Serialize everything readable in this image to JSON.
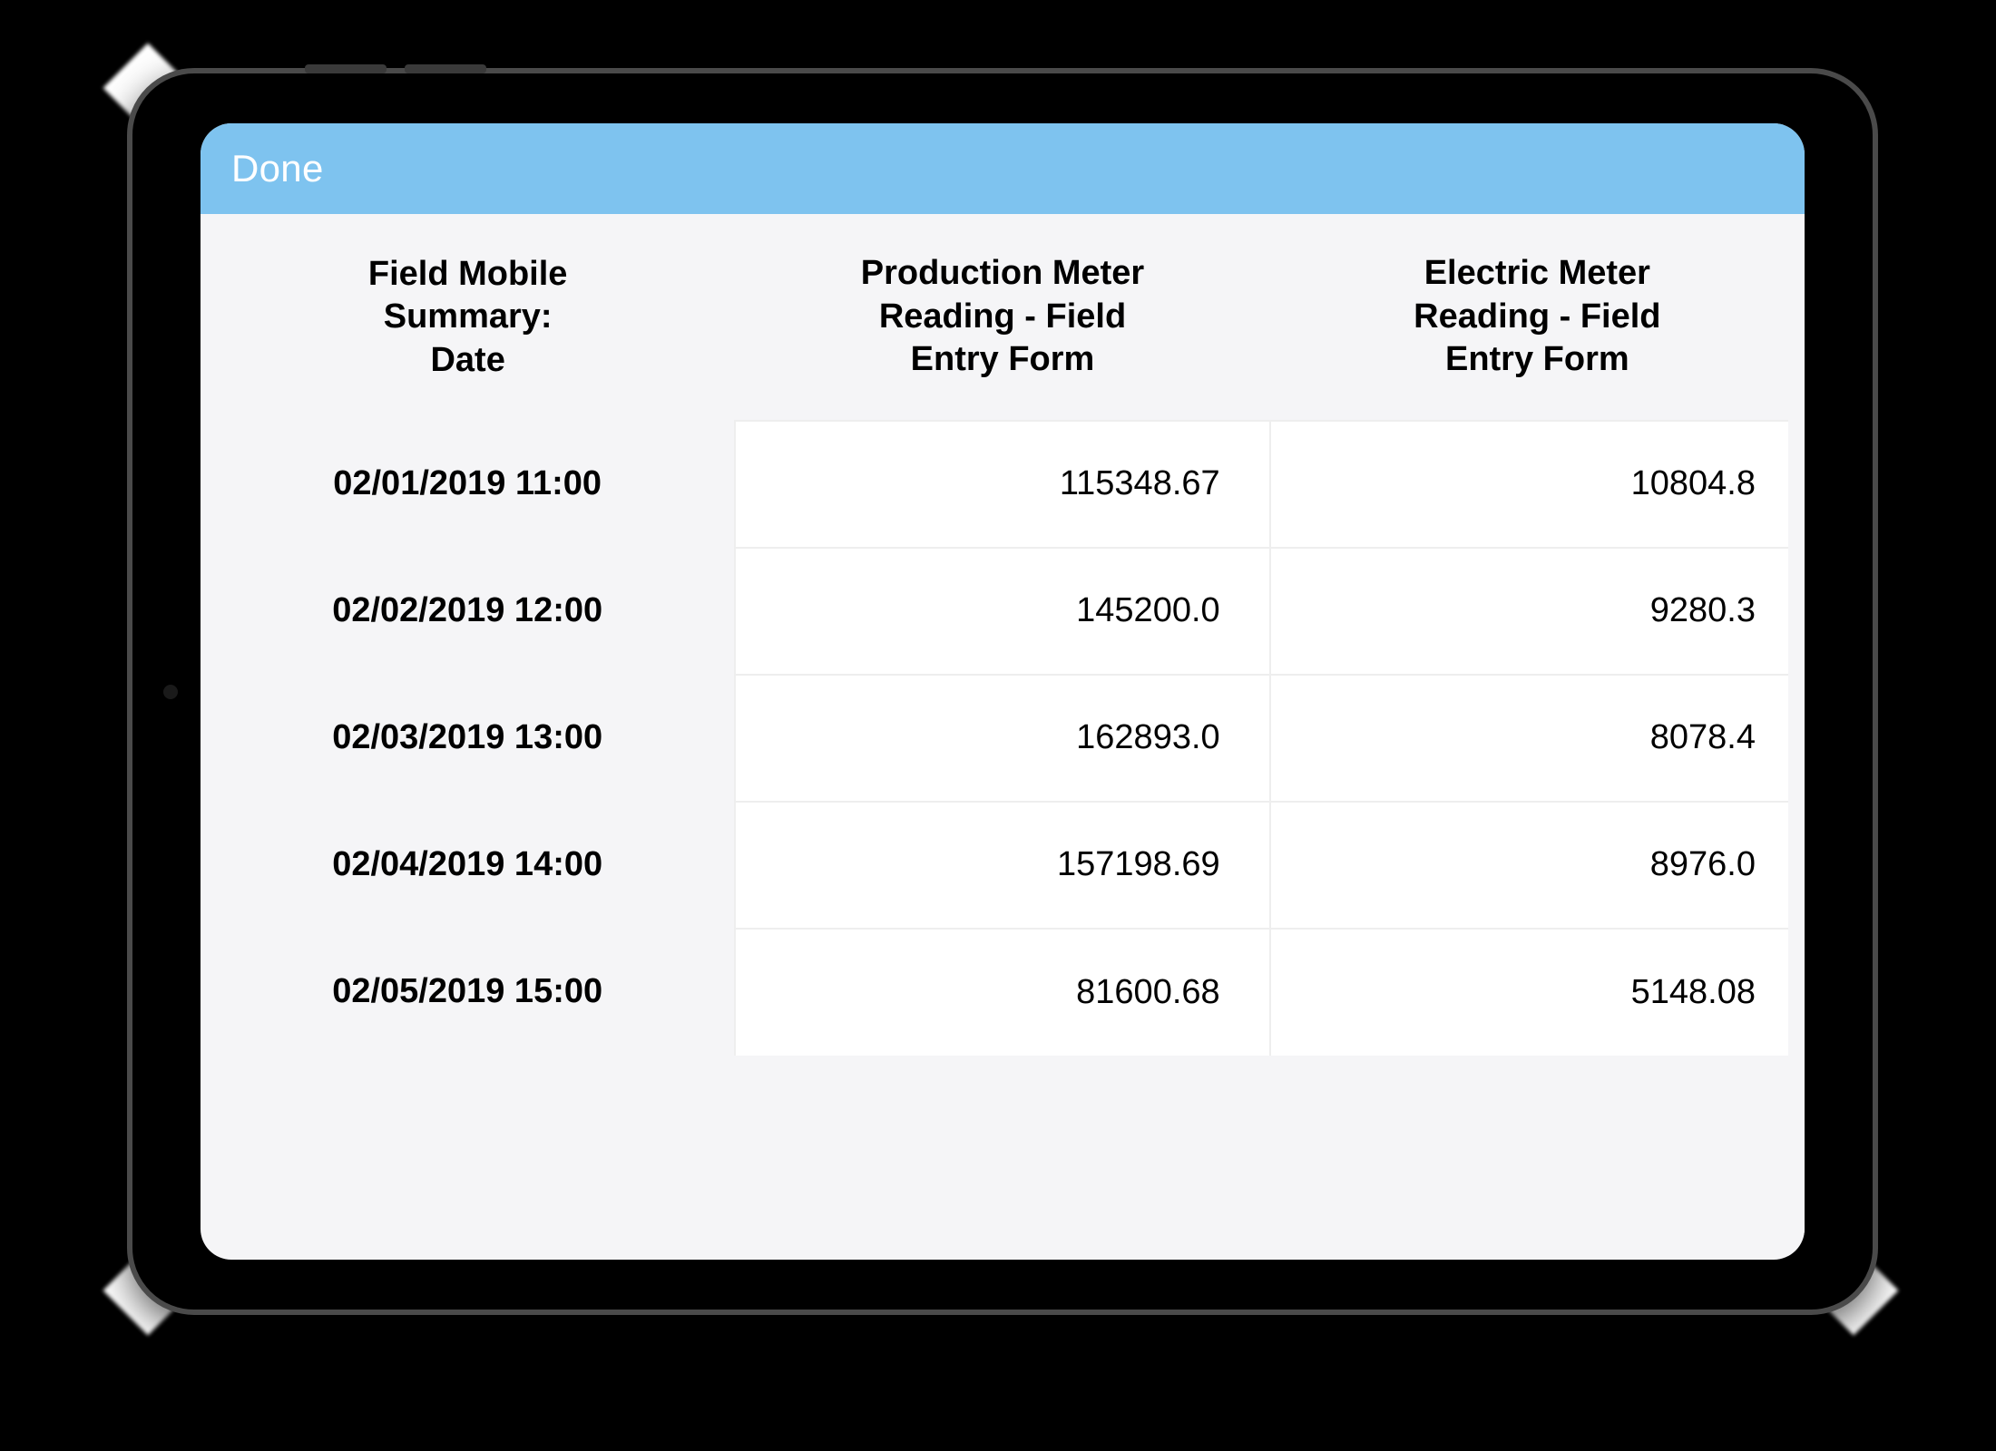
{
  "header": {
    "done_label": "Done",
    "bar_color": "#7ec3ef",
    "text_color": "#ffffff"
  },
  "table": {
    "header_bg": "#f5f5f7",
    "cell_bg": "#ffffff",
    "grid_color": "#eeeeee",
    "columns": {
      "date": {
        "line1": "Field Mobile",
        "line2": "Summary:",
        "line3": "Date"
      },
      "production": {
        "line1": "Production Meter",
        "line2": "Reading - Field",
        "line3": "Entry Form"
      },
      "electric": {
        "line1": "Electric Meter",
        "line2": "Reading - Field",
        "line3": "Entry Form"
      }
    },
    "rows": [
      {
        "date": "02/01/2019 11:00",
        "production": "115348.67",
        "electric": "10804.8"
      },
      {
        "date": "02/02/2019 12:00",
        "production": "145200.0",
        "electric": "9280.3"
      },
      {
        "date": "02/03/2019 13:00",
        "production": "162893.0",
        "electric": "8078.4"
      },
      {
        "date": "02/04/2019 14:00",
        "production": "157198.69",
        "electric": "8976.0"
      },
      {
        "date": "02/05/2019 15:00",
        "production": "81600.68",
        "electric": "5148.08"
      }
    ]
  },
  "device": {
    "frame_border_color": "#4a4a4a",
    "screen_bg": "#f5f5f7"
  }
}
